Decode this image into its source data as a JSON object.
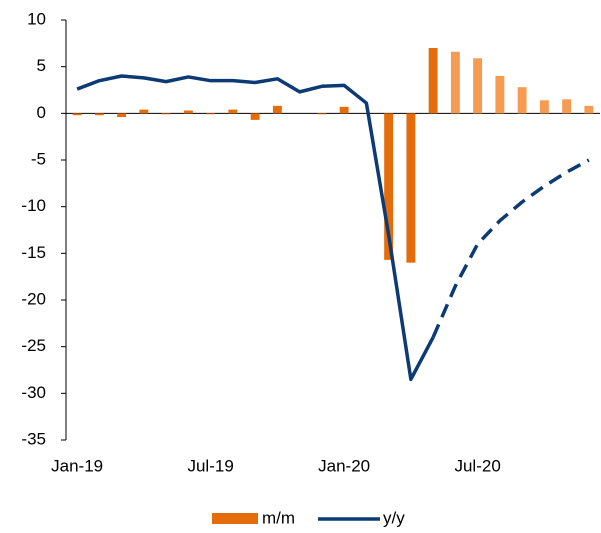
{
  "chart_data": {
    "type": "bar_line",
    "categories": [
      "Jan-19",
      null,
      null,
      null,
      null,
      null,
      "Jul-19",
      null,
      null,
      null,
      null,
      null,
      "Jan-20",
      null,
      null,
      null,
      null,
      null,
      "Jul-20",
      null,
      null,
      null,
      null,
      null
    ],
    "series": [
      {
        "name": "m/m",
        "type": "bar",
        "colors": [
          "#e46c0a",
          "#e46c0a",
          "#e46c0a",
          "#e46c0a",
          "#e46c0a",
          "#e46c0a",
          "#e46c0a",
          "#e46c0a",
          "#e46c0a",
          "#e46c0a",
          "#e46c0a",
          "#e46c0a",
          "#e46c0a",
          "#e46c0a",
          "#e46c0a",
          "#e46c0a",
          "#e46c0a",
          "#f59b52",
          "#f59b52",
          "#f59b52",
          "#f59b52",
          "#f59b52",
          "#f59b52",
          "#f59b52"
        ],
        "values": [
          -0.2,
          -0.2,
          -0.4,
          0.4,
          -0.1,
          0.3,
          -0.1,
          0.4,
          -0.7,
          0.8,
          0,
          -0.1,
          0.7,
          0,
          -15.7,
          -16.0,
          7.0,
          6.6,
          5.9,
          4.0,
          2.8,
          1.4,
          1.5,
          0.8
        ]
      },
      {
        "name": "y/y",
        "type": "line",
        "color": "#0b3a75",
        "dashed_from": 16,
        "values": [
          2.6,
          3.5,
          4.0,
          3.8,
          3.4,
          3.9,
          3.5,
          3.5,
          3.3,
          3.7,
          2.3,
          2.9,
          3.0,
          1.1,
          -13.0,
          -28.5,
          -24.0,
          -18.5,
          -14.0,
          -11.5,
          -9.5,
          -7.8,
          -6.3,
          -5.0
        ]
      }
    ],
    "ylim": [
      -35,
      10
    ],
    "yticks": [
      -35,
      -30,
      -25,
      -20,
      -15,
      -10,
      -5,
      0,
      5,
      10
    ],
    "legend": "bottom"
  }
}
